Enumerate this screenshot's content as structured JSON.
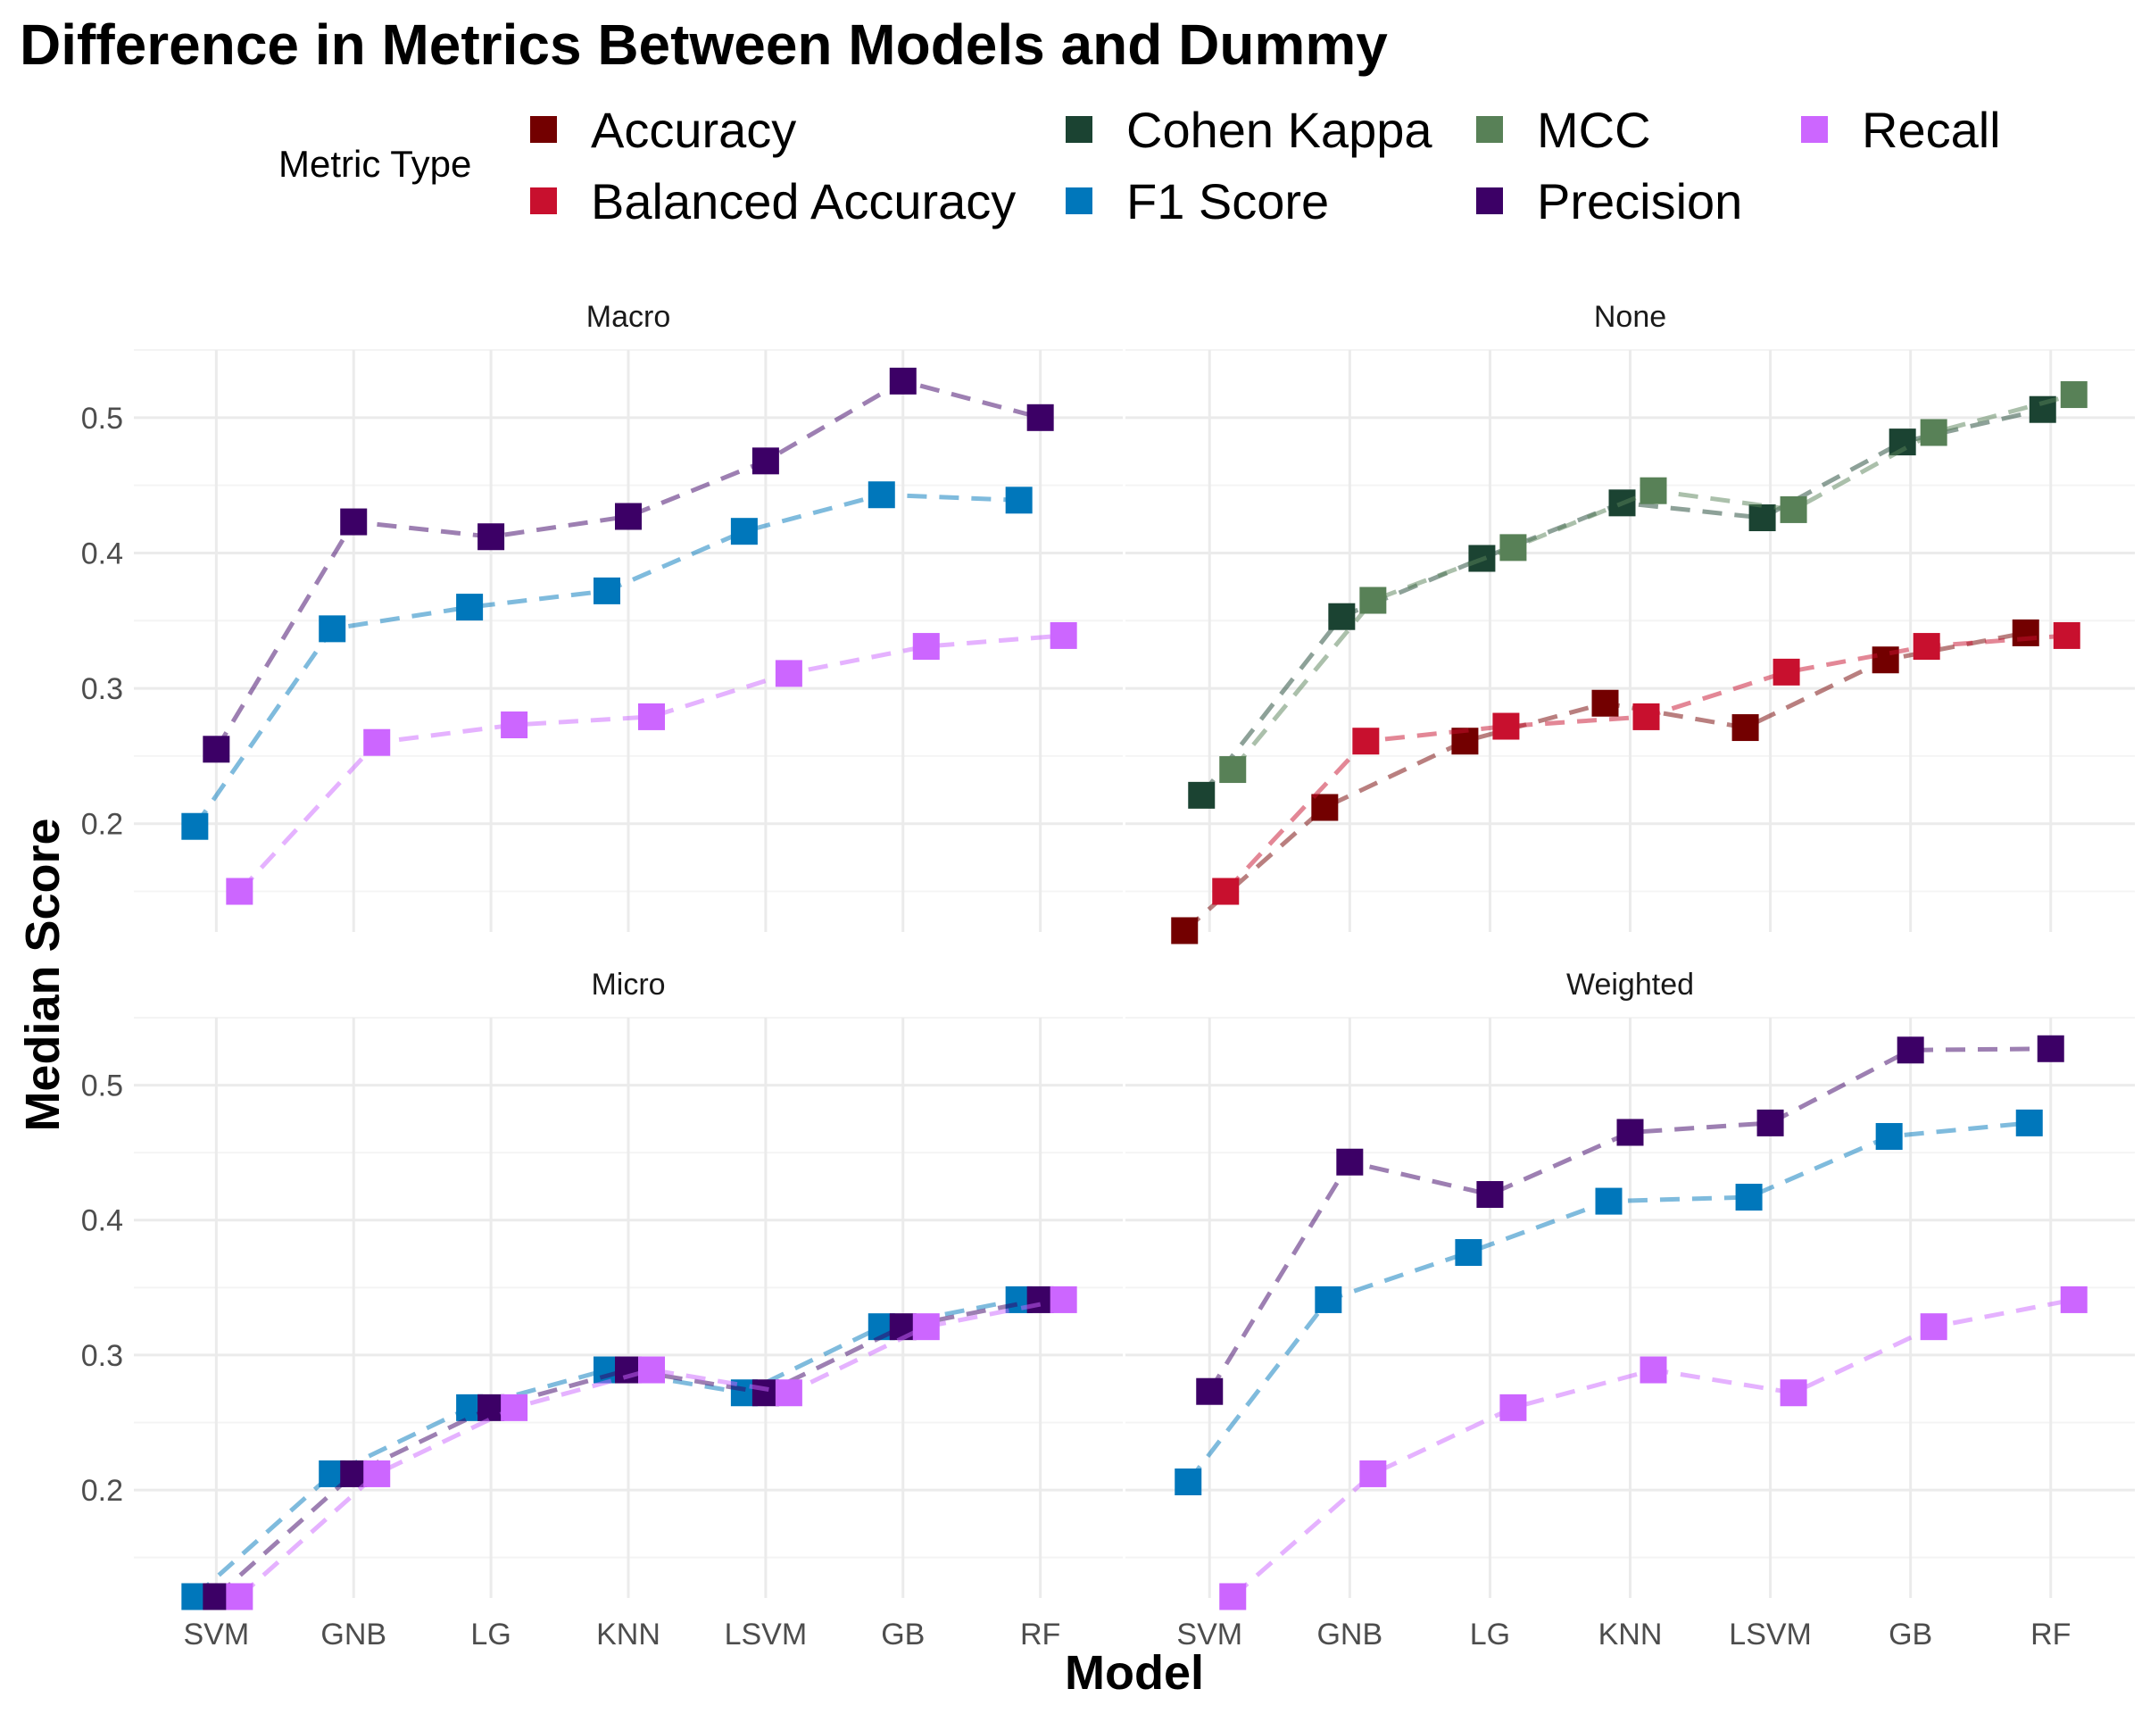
{
  "chart_data": {
    "type": "line",
    "title": "Difference in Metrics Between Models and Dummy",
    "xlabel": "Model",
    "ylabel": "Median Score",
    "categories": [
      "SVM",
      "GNB",
      "LG",
      "KNN",
      "LSVM",
      "GB",
      "RF"
    ],
    "ylim": [
      0.12,
      0.55
    ],
    "yticks": [
      0.2,
      0.3,
      0.4,
      0.5
    ],
    "grid": true,
    "line_style": "dashed",
    "marker": "square",
    "legend": {
      "title": "Metric Type",
      "placement": "top",
      "entries": [
        {
          "name": "Accuracy",
          "color": "#730000"
        },
        {
          "name": "Balanced Accuracy",
          "color": "#C8102E"
        },
        {
          "name": "Cohen Kappa",
          "color": "#1B4332"
        },
        {
          "name": "F1 Score",
          "color": "#0077BB"
        },
        {
          "name": "MCC",
          "color": "#588157"
        },
        {
          "name": "Precision",
          "color": "#3C0066"
        },
        {
          "name": "Recall",
          "color": "#CC66FF"
        }
      ]
    },
    "panels": [
      {
        "name": "Macro",
        "series": [
          {
            "name": "F1 Score",
            "values": [
              0.198,
              0.344,
              0.36,
              0.372,
              0.416,
              0.443,
              0.439
            ]
          },
          {
            "name": "Precision",
            "values": [
              0.255,
              0.423,
              0.412,
              0.427,
              0.468,
              0.527,
              0.5
            ]
          },
          {
            "name": "Recall",
            "values": [
              0.15,
              0.26,
              0.273,
              0.279,
              0.311,
              0.331,
              0.339
            ]
          }
        ]
      },
      {
        "name": "None",
        "series": [
          {
            "name": "Accuracy",
            "values": [
              0.121,
              0.212,
              0.261,
              0.289,
              0.271,
              0.321,
              0.341
            ]
          },
          {
            "name": "Balanced Accuracy",
            "values": [
              0.15,
              0.261,
              0.272,
              0.279,
              0.312,
              0.331,
              0.339
            ]
          },
          {
            "name": "Cohen Kappa",
            "values": [
              0.221,
              0.353,
              0.396,
              0.437,
              0.426,
              0.482,
              0.506
            ]
          },
          {
            "name": "MCC",
            "values": [
              0.24,
              0.365,
              0.404,
              0.446,
              0.432,
              0.489,
              0.517
            ]
          }
        ]
      },
      {
        "name": "Micro",
        "series": [
          {
            "name": "F1 Score",
            "values": [
              0.121,
              0.212,
              0.261,
              0.289,
              0.272,
              0.321,
              0.341
            ]
          },
          {
            "name": "Precision",
            "values": [
              0.121,
              0.212,
              0.261,
              0.289,
              0.272,
              0.321,
              0.341
            ]
          },
          {
            "name": "Recall",
            "values": [
              0.121,
              0.212,
              0.261,
              0.289,
              0.272,
              0.321,
              0.341
            ]
          }
        ]
      },
      {
        "name": "Weighted",
        "series": [
          {
            "name": "F1 Score",
            "values": [
              0.206,
              0.341,
              0.376,
              0.414,
              0.417,
              0.462,
              0.472
            ]
          },
          {
            "name": "Precision",
            "values": [
              0.273,
              0.443,
              0.419,
              0.465,
              0.472,
              0.526,
              0.527
            ]
          },
          {
            "name": "Recall",
            "values": [
              0.121,
              0.212,
              0.261,
              0.289,
              0.272,
              0.321,
              0.341
            ]
          }
        ]
      }
    ]
  }
}
